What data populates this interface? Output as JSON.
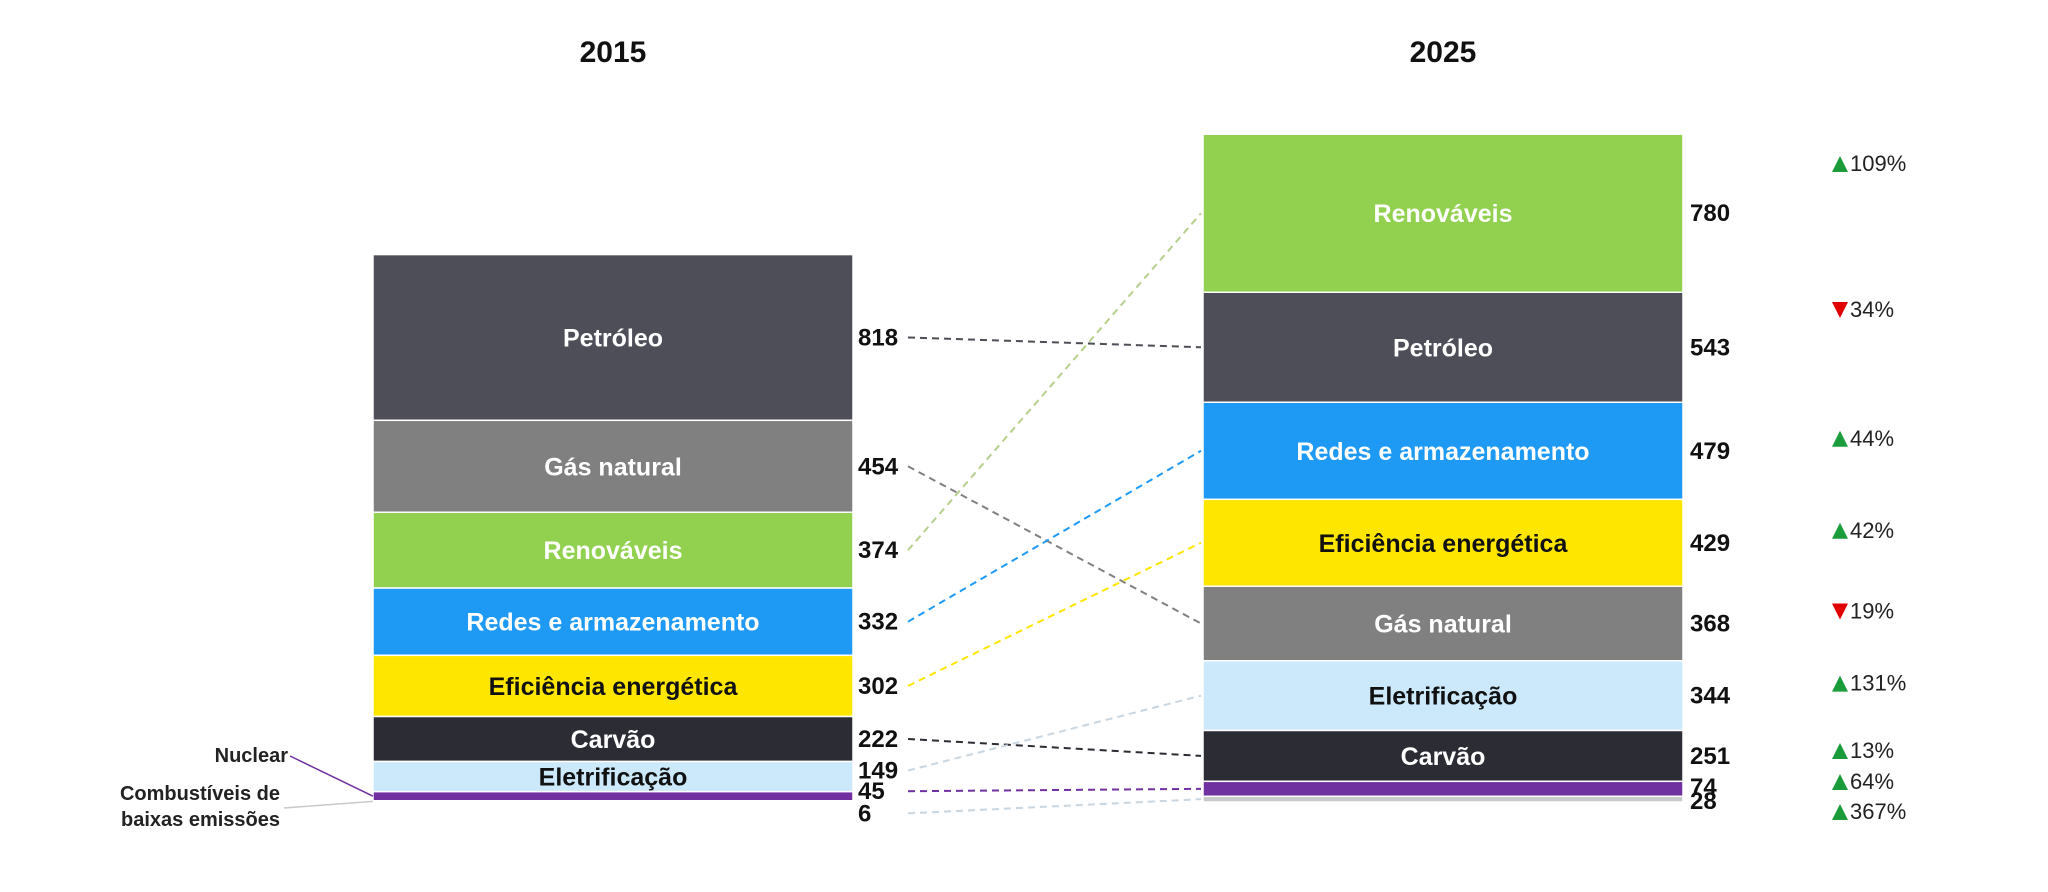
{
  "chart_data": {
    "type": "bar",
    "stacked": true,
    "categories": [
      "2015",
      "2025"
    ],
    "series": [
      {
        "name": "Petróleo",
        "values": [
          818,
          543
        ],
        "change": "34%",
        "direction": "down",
        "color": "#4d4e57",
        "text_color": "#ffffff"
      },
      {
        "name": "Gás natural",
        "values": [
          454,
          368
        ],
        "change": "19%",
        "direction": "down",
        "color": "#808080",
        "text_color": "#ffffff"
      },
      {
        "name": "Renováveis",
        "values": [
          374,
          780
        ],
        "change": "109%",
        "direction": "up",
        "color": "#92d050",
        "text_color": "#ffffff"
      },
      {
        "name": "Redes e armazenamento",
        "values": [
          332,
          479
        ],
        "change": "44%",
        "direction": "up",
        "color": "#1e9af5",
        "text_color": "#ffffff"
      },
      {
        "name": "Eficiência energética",
        "values": [
          302,
          429
        ],
        "change": "42%",
        "direction": "up",
        "color": "#ffe600",
        "text_color": "#111111"
      },
      {
        "name": "Carvão",
        "values": [
          222,
          251
        ],
        "change": "13%",
        "direction": "up",
        "color": "#2c2c35",
        "text_color": "#ffffff"
      },
      {
        "name": "Eletrificação",
        "values": [
          149,
          344
        ],
        "change": "131%",
        "direction": "up",
        "color": "#cce8fb",
        "text_color": "#111111"
      },
      {
        "name": "Nuclear",
        "values": [
          45,
          74
        ],
        "change": "64%",
        "direction": "up",
        "color": "#7030a0",
        "text_color": "#ffffff"
      },
      {
        "name": "Combustíveis de baixas emissões",
        "values": [
          6,
          28
        ],
        "change": "367%",
        "direction": "up",
        "color": "#c8c8c8",
        "text_color": "#111111"
      }
    ],
    "stack_order_2015": [
      "Petróleo",
      "Gás natural",
      "Renováveis",
      "Redes e armazenamento",
      "Eficiência energética",
      "Carvão",
      "Eletrificação",
      "Nuclear",
      "Combustíveis de baixas emissões"
    ],
    "stack_order_2025": [
      "Renováveis",
      "Petróleo",
      "Redes e armazenamento",
      "Eficiência energética",
      "Gás natural",
      "Eletrificação",
      "Carvão",
      "Nuclear",
      "Combustíveis de baixas emissões"
    ],
    "outside_labels_2015": [
      "Nuclear",
      "Combustíveis de baixas emissões"
    ],
    "outside_label_lines": {
      "Combustíveis de baixas emissões": [
        "Combustíveis de",
        "baixas emissões"
      ]
    },
    "up_color": "#1a9c3a",
    "down_color": "#e00000",
    "title": "",
    "xlabel": "",
    "ylabel": ""
  }
}
